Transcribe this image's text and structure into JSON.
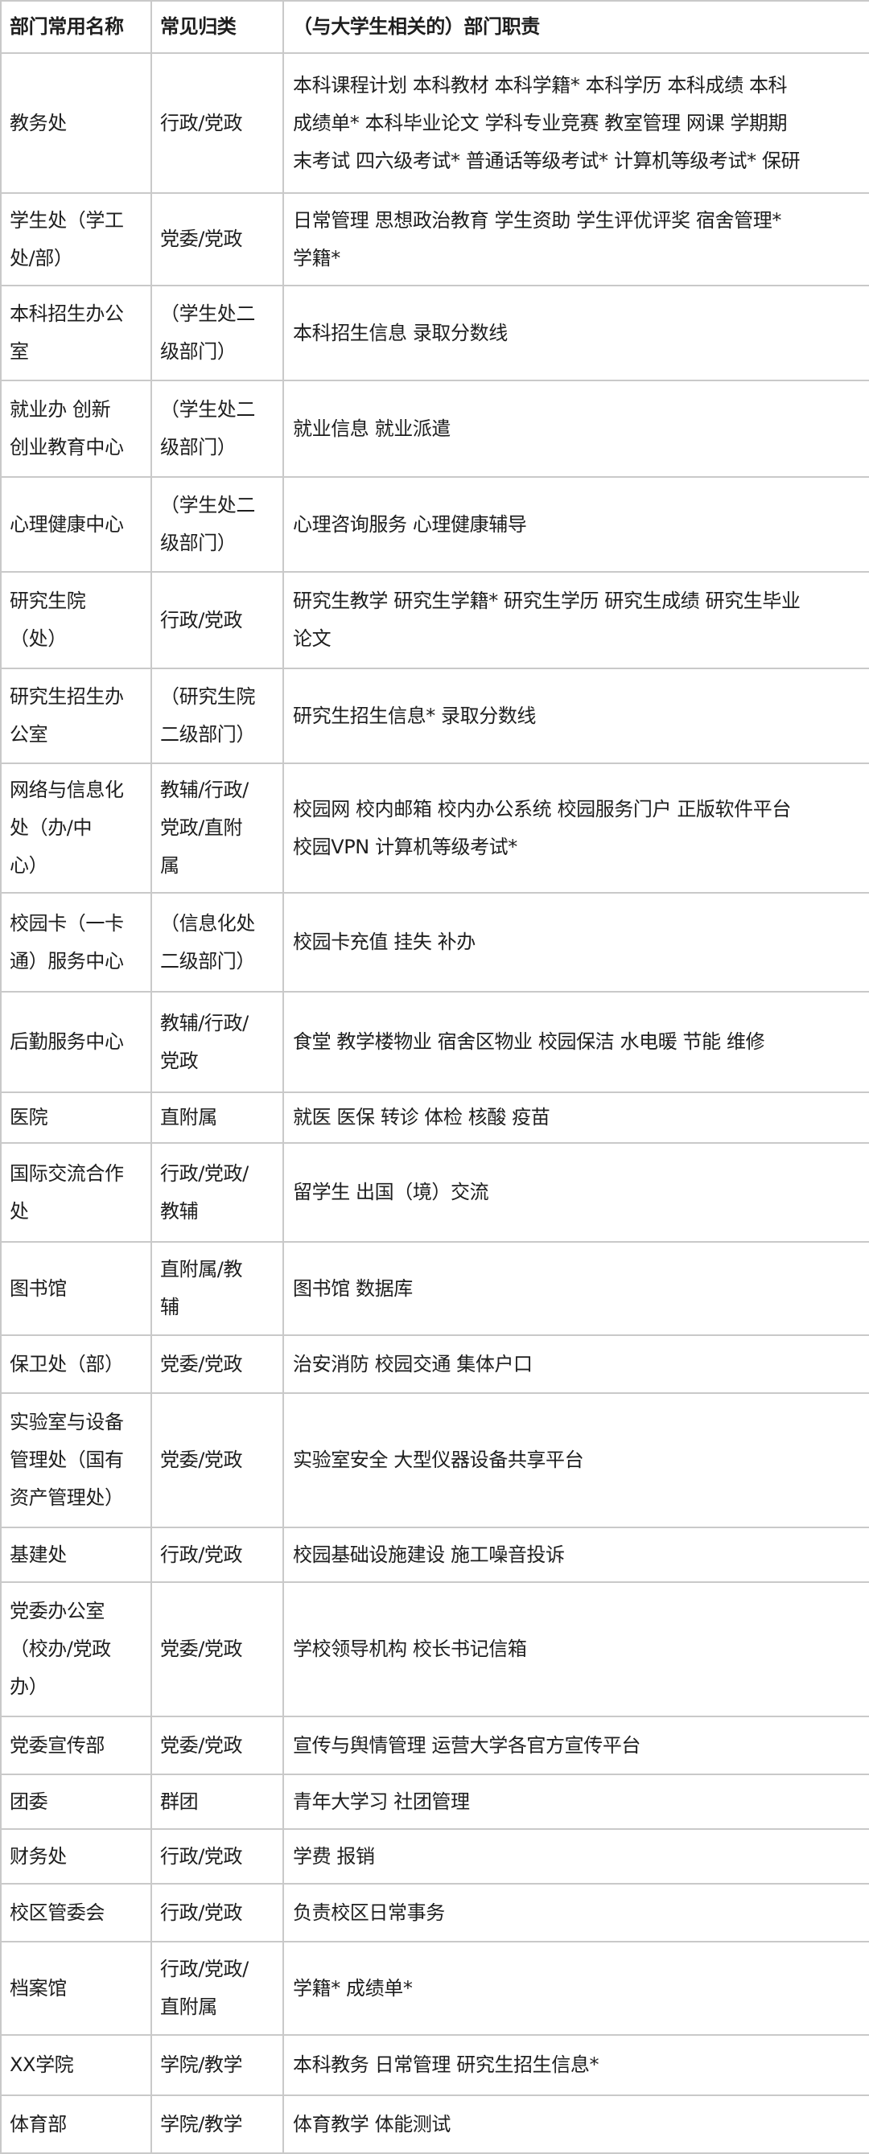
{
  "header": [
    "部门常用名称",
    "常见归类",
    "（与大学生相关的）部门职责"
  ],
  "rows": [
    {
      "name": "教务处",
      "type": "行政/党政",
      "duty": "本科课程计划 本科教材 本科学籍* 本科学历 本科成绩 本科\n成绩单* 本科毕业论文 学科专业竞赛 教室管理 网课 学期期\n末考试 四六级考试* 普通话等级考试* 计算机等级考试* 保研"
    },
    {
      "name": "学生处（学工\n处/部）",
      "type": "党委/党政",
      "duty": "日常管理 思想政治教育 学生资助 学生评优评奖 宿舍管理*\n学籍*"
    },
    {
      "name": "本科招生办公\n室",
      "type": "（学生处二\n级部门）",
      "duty": "本科招生信息 录取分数线"
    },
    {
      "name": "就业办 创新\n创业教育中心",
      "type": "（学生处二\n级部门）",
      "duty": "就业信息 就业派遣"
    },
    {
      "name": "心理健康中心",
      "type": "（学生处二\n级部门）",
      "duty": "心理咨询服务 心理健康辅导"
    },
    {
      "name": "研究生院\n（处）",
      "type": "行政/党政",
      "duty": "研究生教学 研究生学籍* 研究生学历 研究生成绩 研究生毕业\n论文"
    },
    {
      "name": "研究生招生办\n公室",
      "type": "（研究生院\n二级部门）",
      "duty": "研究生招生信息* 录取分数线"
    },
    {
      "name": "网络与信息化\n处（办/中\n心）",
      "type": "教辅/行政/\n党政/直附\n属",
      "duty": "校园网 校内邮箱 校内办公系统 校园服务门户 正版软件平台\n校园VPN 计算机等级考试*"
    },
    {
      "name": "校园卡（一卡\n通）服务中心",
      "type": "（信息化处\n二级部门）",
      "duty": "校园卡充值 挂失 补办"
    },
    {
      "name": "后勤服务中心",
      "type": "教辅/行政/\n党政",
      "duty": "食堂 教学楼物业 宿舍区物业 校园保洁 水电暖 节能 维修"
    },
    {
      "name": "医院",
      "type": "直附属",
      "duty": "就医 医保 转诊 体检 核酸 疫苗"
    },
    {
      "name": "国际交流合作\n处",
      "type": "行政/党政/\n教辅",
      "duty": "留学生 出国（境）交流"
    },
    {
      "name": "图书馆",
      "type": "直附属/教\n辅",
      "duty": "图书馆 数据库"
    },
    {
      "name": "保卫处（部）",
      "type": "党委/党政",
      "duty": "治安消防 校园交通 集体户口"
    },
    {
      "name": "实验室与设备\n管理处（国有\n资产管理处）",
      "type": "党委/党政",
      "duty": "实验室安全 大型仪器设备共享平台"
    },
    {
      "name": "基建处",
      "type": "行政/党政",
      "duty": "校园基础设施建设 施工噪音投诉"
    },
    {
      "name": "党委办公室\n（校办/党政\n办）",
      "type": "党委/党政",
      "duty": "学校领导机构 校长书记信箱"
    },
    {
      "name": "党委宣传部",
      "type": "党委/党政",
      "duty": "宣传与舆情管理 运营大学各官方宣传平台"
    },
    {
      "name": "团委",
      "type": "群团",
      "duty": "青年大学习 社团管理"
    },
    {
      "name": "财务处",
      "type": "行政/党政",
      "duty": "学费 报销"
    },
    {
      "name": "校区管委会",
      "type": "行政/党政",
      "duty": "负责校区日常事务"
    },
    {
      "name": "档案馆",
      "type": "行政/党政/\n直附属",
      "duty": "学籍* 成绩单*"
    },
    {
      "name": "XX学院",
      "type": "学院/教学",
      "duty": "本科教务 日常管理 研究生招生信息*"
    },
    {
      "name": "体育部",
      "type": "学院/教学",
      "duty": "体育教学 体能测试"
    }
  ]
}
